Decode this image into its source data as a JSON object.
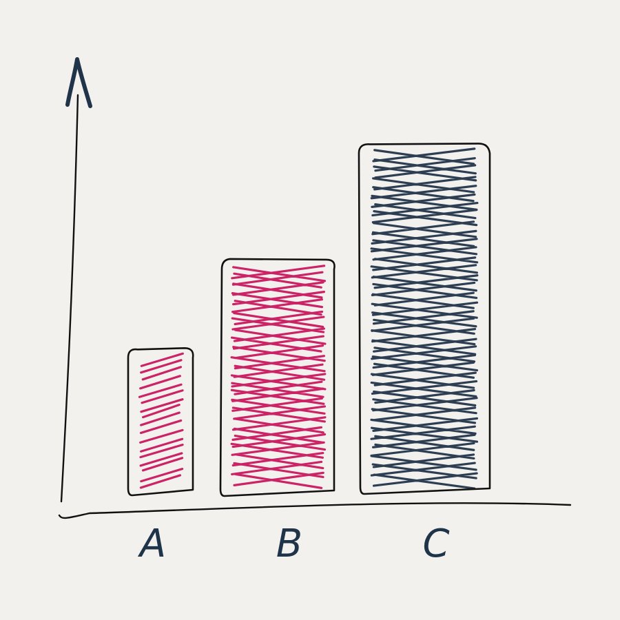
{
  "chart_data": {
    "type": "bar",
    "categories": [
      "A",
      "B",
      "C"
    ],
    "values": [
      2.7,
      4.3,
      6.4
    ],
    "ylim": [
      0,
      8
    ],
    "grid": false,
    "legend": "none",
    "bar_colors": [
      "#c8175d",
      "#c8175d",
      "#22344a"
    ],
    "outline_color": "#111111",
    "axis_color": "#1f3349"
  }
}
